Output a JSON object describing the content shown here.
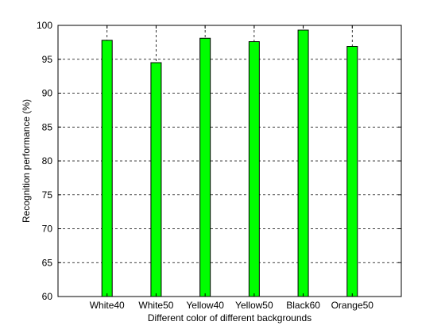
{
  "chart_data": {
    "type": "bar",
    "title": "",
    "xlabel": "Different color of different backgrounds",
    "ylabel": "Recognition performance (%)",
    "categories": [
      "White40",
      "White50",
      "Yellow40",
      "Yellow50",
      "Black60",
      "Orange50"
    ],
    "values": [
      97.8,
      94.5,
      98.1,
      97.6,
      99.3,
      96.9
    ],
    "ylim": [
      60,
      100
    ],
    "yticks": [
      60,
      65,
      70,
      75,
      80,
      85,
      90,
      95,
      100
    ],
    "grid": true,
    "bar_color": "#00ff00"
  }
}
